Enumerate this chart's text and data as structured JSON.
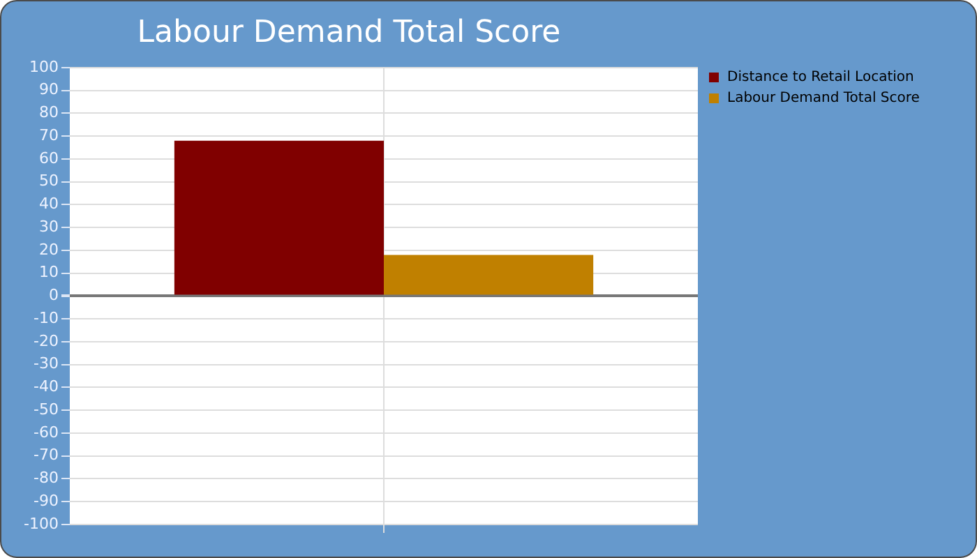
{
  "chart_data": {
    "type": "bar",
    "title": "Labour Demand Total Score",
    "categories": [
      null
    ],
    "series": [
      {
        "name": "Distance to Retail Location",
        "color": "#800000",
        "values": [
          68
        ]
      },
      {
        "name": "Labour Demand Total Score",
        "color": "#c08000",
        "values": [
          18
        ]
      }
    ],
    "ylim": [
      -100,
      100
    ],
    "yticks": [
      -100,
      -90,
      -80,
      -70,
      -60,
      -50,
      -40,
      -30,
      -20,
      -10,
      0,
      10,
      20,
      30,
      40,
      50,
      60,
      70,
      80,
      90,
      100
    ],
    "grid": true,
    "legend": "right"
  }
}
